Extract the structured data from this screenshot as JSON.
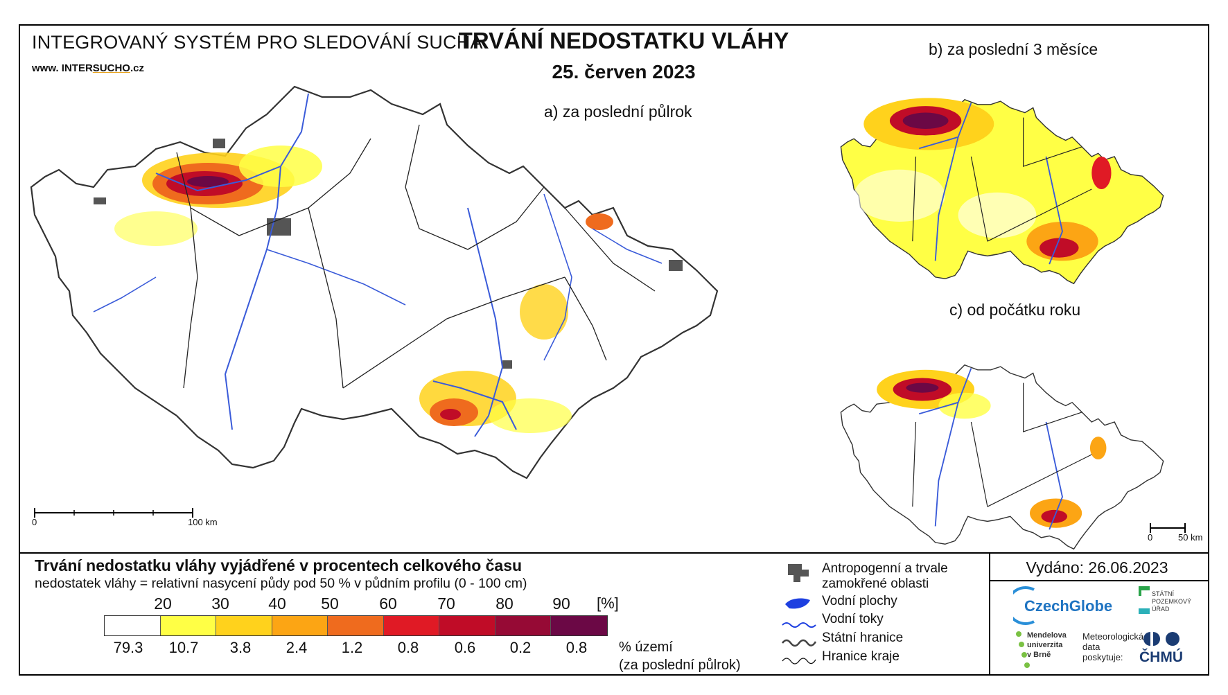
{
  "header": {
    "system_title": "INTEGROVANÝ SYSTÉM PRO SLEDOVÁNÍ SUCHA",
    "website_prefix": "www. INTER",
    "website_accent": "SUCHO",
    "website_suffix": ".cz",
    "main_title": "TRVÁNÍ NEDOSTATKU VLÁHY",
    "date": "25. červen 2023"
  },
  "maps": {
    "a": {
      "label": "a) za poslední půlrok",
      "scale_start": "0",
      "scale_end": "100 km"
    },
    "b": {
      "label": "b) za poslední 3 měsíce"
    },
    "c": {
      "label": "c) od počátku roku",
      "scale_start": "0",
      "scale_end": "50 km"
    }
  },
  "legend": {
    "title": "Trvání nedostatku vláhy vyjádřené v procentech celkového času",
    "subtitle": "nedostatek vláhy = relativní nasycení půdy pod 50 % v půdním profilu (0 - 100 cm)",
    "ticks": [
      "20",
      "30",
      "40",
      "50",
      "60",
      "70",
      "80",
      "90"
    ],
    "unit": "[%]",
    "colors": [
      "#ffffff",
      "#ffff45",
      "#ffd21c",
      "#fca514",
      "#ef6b1e",
      "#e01a25",
      "#c00c27",
      "#960a35",
      "#6b0845"
    ],
    "percentages": [
      "79.3",
      "10.7",
      "3.8",
      "2.4",
      "1.2",
      "0.8",
      "0.6",
      "0.2",
      "0.8"
    ],
    "territory_label_line1": "% území",
    "territory_label_line2": "(za poslední půlrok)"
  },
  "layer_legend": {
    "anthropogenic_line1": "Antropogenní a trvale",
    "anthropogenic_line2": "zamokřené oblasti",
    "water_bodies": "Vodní plochy",
    "rivers": "Vodní toky",
    "state_border": "Státní hranice",
    "region_border": "Hranice kraje"
  },
  "footer": {
    "issued": "Vydáno: 26.06.2023",
    "czechglobe": "CzechGlobe",
    "spu_line1": "STÁTNÍ",
    "spu_line2": "POZEMKOVÝ",
    "spu_line3": "ÚŘAD",
    "mendel_line1": "Mendelova",
    "mendel_line2": "univerzita",
    "mendel_line3": "v Brně",
    "met_line1": "Meteorologická",
    "met_line2": "data",
    "met_line3": "poskytuje:",
    "chmu": "ČHMÚ"
  }
}
